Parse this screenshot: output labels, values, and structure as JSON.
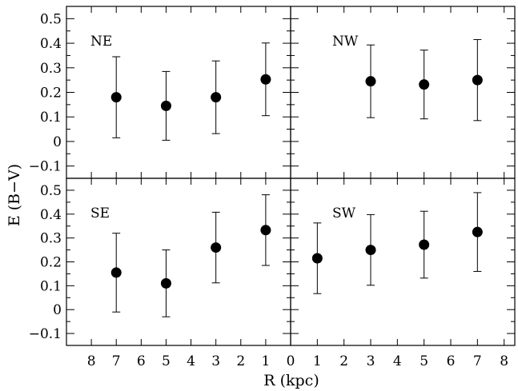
{
  "chart_data": {
    "type": "scatter",
    "error_bars": true,
    "ylabel": "E (B−V)",
    "xlabel": "R (kpc)",
    "ylim": [
      -0.15,
      0.55
    ],
    "yticks": [
      -0.1,
      0,
      0.1,
      0.2,
      0.3,
      0.4,
      0.5
    ],
    "ytick_labels": [
      "−0.1",
      "0",
      "0.1",
      "0.2",
      "0.3",
      "0.4",
      "0.5"
    ],
    "xtick_labels_left": [
      "8",
      "7",
      "6",
      "5",
      "4",
      "3",
      "2",
      "1",
      "0"
    ],
    "xtick_labels_right": [
      "1",
      "2",
      "3",
      "4",
      "5",
      "6",
      "7",
      "8"
    ],
    "panels": [
      {
        "label": "NE",
        "x_direction": "reversed",
        "xlim": [
          9,
          0
        ],
        "points": [
          {
            "x": 7,
            "y": 0.18,
            "yerr_low": 0.165,
            "yerr_high": 0.165
          },
          {
            "x": 5,
            "y": 0.145,
            "yerr_low": 0.14,
            "yerr_high": 0.14
          },
          {
            "x": 3,
            "y": 0.18,
            "yerr_low": 0.148,
            "yerr_high": 0.148
          },
          {
            "x": 1,
            "y": 0.253,
            "yerr_low": 0.148,
            "yerr_high": 0.148
          }
        ]
      },
      {
        "label": "NW",
        "x_direction": "normal",
        "xlim": [
          0,
          8.4
        ],
        "points": [
          {
            "x": 3,
            "y": 0.245,
            "yerr_low": 0.148,
            "yerr_high": 0.148
          },
          {
            "x": 5,
            "y": 0.232,
            "yerr_low": 0.14,
            "yerr_high": 0.14
          },
          {
            "x": 7,
            "y": 0.25,
            "yerr_low": 0.165,
            "yerr_high": 0.165
          }
        ]
      },
      {
        "label": "SE",
        "x_direction": "reversed",
        "xlim": [
          9,
          0
        ],
        "points": [
          {
            "x": 7,
            "y": 0.155,
            "yerr_low": 0.165,
            "yerr_high": 0.165
          },
          {
            "x": 5,
            "y": 0.11,
            "yerr_low": 0.14,
            "yerr_high": 0.14
          },
          {
            "x": 3,
            "y": 0.26,
            "yerr_low": 0.148,
            "yerr_high": 0.148
          },
          {
            "x": 1,
            "y": 0.333,
            "yerr_low": 0.148,
            "yerr_high": 0.148
          }
        ]
      },
      {
        "label": "SW",
        "x_direction": "normal",
        "xlim": [
          0,
          8.4
        ],
        "points": [
          {
            "x": 1,
            "y": 0.215,
            "yerr_low": 0.148,
            "yerr_high": 0.148
          },
          {
            "x": 3,
            "y": 0.25,
            "yerr_low": 0.148,
            "yerr_high": 0.148
          },
          {
            "x": 5,
            "y": 0.272,
            "yerr_low": 0.14,
            "yerr_high": 0.14
          },
          {
            "x": 7,
            "y": 0.325,
            "yerr_low": 0.165,
            "yerr_high": 0.165
          }
        ]
      }
    ]
  }
}
